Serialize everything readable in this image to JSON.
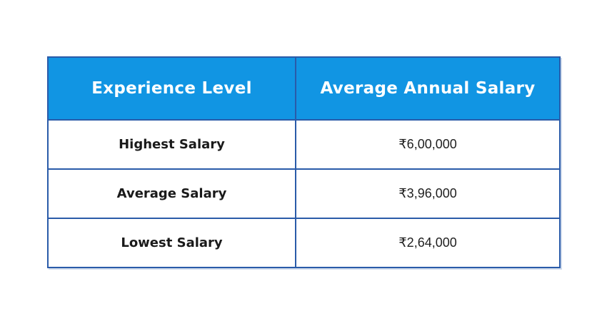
{
  "chart_data": {
    "type": "table",
    "columns": [
      "Experience Level",
      "Average Annual Salary"
    ],
    "rows": [
      [
        "Highest Salary",
        "₹6,00,000"
      ],
      [
        "Average Salary",
        "₹3,96,000"
      ],
      [
        "Lowest Salary",
        "₹2,64,000"
      ]
    ],
    "values_numeric_inr": [
      600000,
      396000,
      264000
    ],
    "currency": "INR"
  },
  "colors": {
    "header-bg": "#1195e3",
    "header-text": "#ffffff",
    "border-color": "#2a5ba9",
    "row-bg": "#ffffff",
    "label-text": "#1a1a1a",
    "value-text": "#1f1f1f"
  }
}
